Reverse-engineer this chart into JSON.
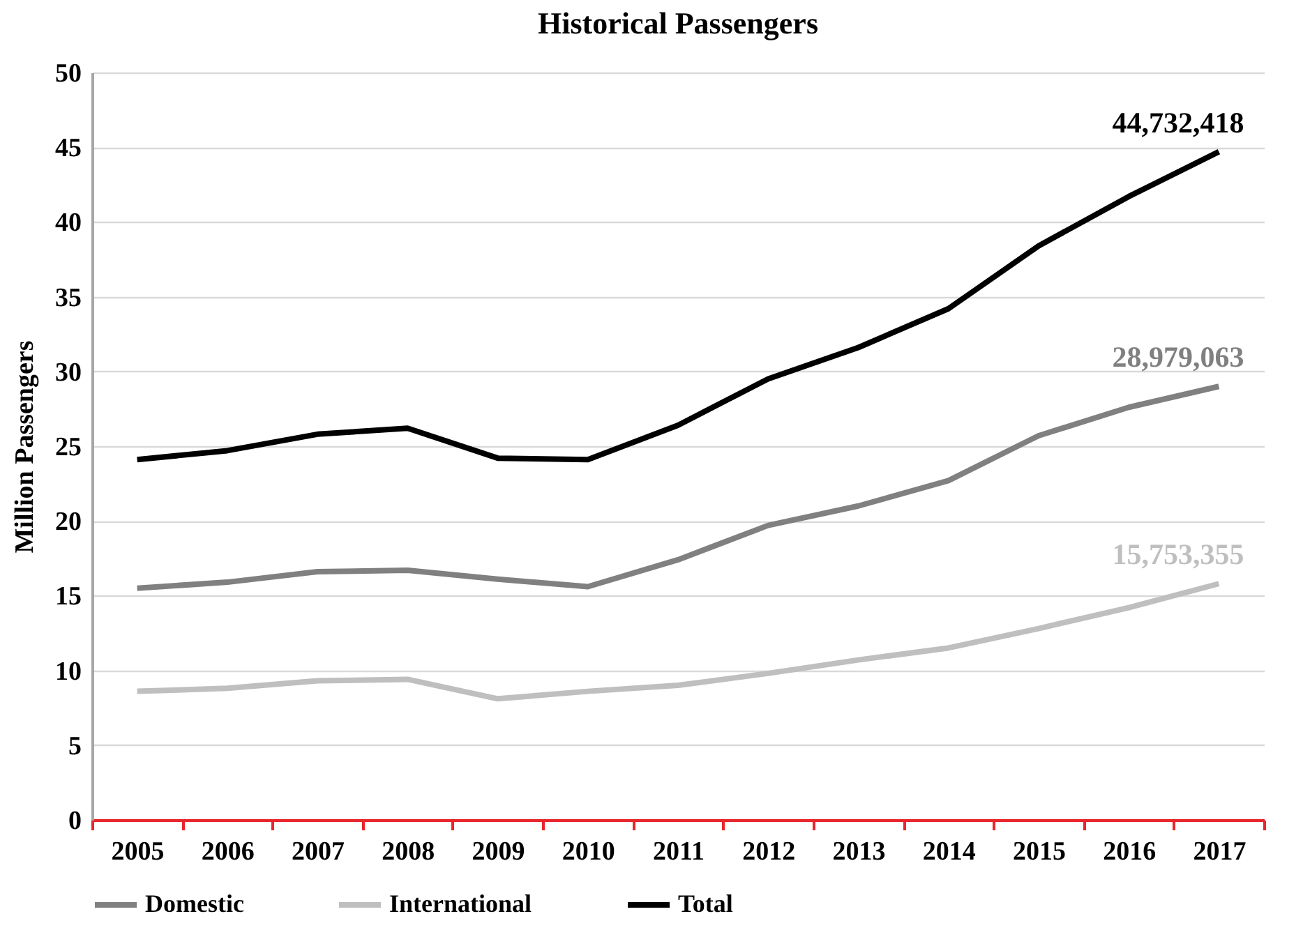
{
  "chart_data": {
    "type": "line",
    "title": "Historical Passengers",
    "ylabel": "Million Passengers",
    "categories": [
      "2005",
      "2006",
      "2007",
      "2008",
      "2009",
      "2010",
      "2011",
      "2012",
      "2013",
      "2014",
      "2015",
      "2016",
      "2017"
    ],
    "ylim": [
      0,
      50
    ],
    "yticks": [
      0,
      5,
      10,
      15,
      20,
      25,
      30,
      35,
      40,
      45,
      50
    ],
    "grid": "y",
    "legend": "bottom",
    "marker": "none",
    "line_style": "solid",
    "series": [
      {
        "name": "Domestic",
        "color": "#808080",
        "values": [
          15.5,
          15.9,
          16.6,
          16.7,
          16.1,
          15.6,
          17.4,
          19.7,
          21.0,
          22.7,
          25.7,
          27.6,
          29.0
        ]
      },
      {
        "name": "International",
        "color": "#bfbfbf",
        "values": [
          8.6,
          8.8,
          9.3,
          9.4,
          8.1,
          8.6,
          9.0,
          9.8,
          10.7,
          11.5,
          12.8,
          14.2,
          15.8
        ]
      },
      {
        "name": "Total",
        "color": "#000000",
        "values": [
          24.1,
          24.7,
          25.8,
          26.2,
          24.2,
          24.1,
          26.4,
          29.5,
          31.6,
          34.2,
          38.4,
          41.7,
          44.7
        ]
      }
    ],
    "annotations": [
      {
        "text": "44,732,418",
        "x": "2017",
        "y": 44.7
      },
      {
        "text": "28,979,063",
        "x": "2017",
        "y": 29.0
      },
      {
        "text": "15,753,355",
        "x": "2017",
        "y": 15.8
      }
    ]
  }
}
